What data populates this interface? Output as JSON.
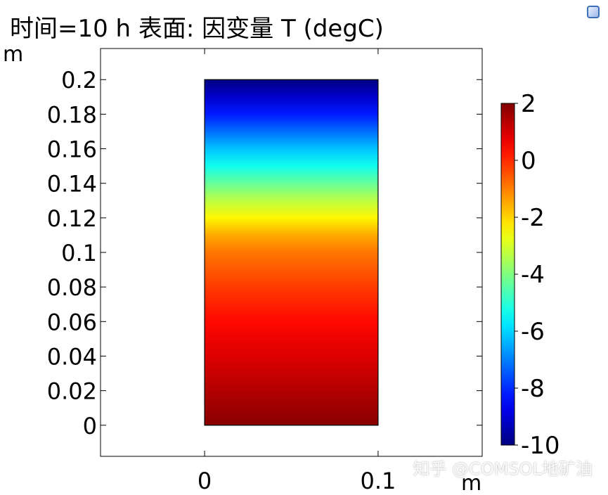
{
  "chart_data": {
    "type": "heatmap",
    "title": "时间=10 h  表面: 因变量 T (degC)",
    "xlabel": "m",
    "ylabel": "m",
    "xlim": [
      -0.06,
      0.16
    ],
    "ylim": [
      -0.018,
      0.218
    ],
    "x_ticks": [
      0,
      0.1
    ],
    "x_tick_labels": [
      "0",
      "0.1"
    ],
    "y_ticks": [
      0,
      0.02,
      0.04,
      0.06,
      0.08,
      0.1,
      0.12,
      0.14,
      0.16,
      0.18,
      0.2
    ],
    "y_tick_labels": [
      "0",
      "0.02",
      "0.04",
      "0.06",
      "0.08",
      "0.1",
      "0.12",
      "0.14",
      "0.16",
      "0.18",
      "0.2"
    ],
    "domain_x": [
      0,
      0.1
    ],
    "domain_y": [
      0,
      0.2
    ],
    "grid": false,
    "colorbar": {
      "label_unit": "degC",
      "range": [
        -10,
        2
      ],
      "ticks": [
        2,
        0,
        -2,
        -4,
        -6,
        -8,
        -10
      ],
      "tick_labels": [
        "2",
        "0",
        "-2",
        "-4",
        "-6",
        "-8",
        "-10"
      ],
      "colormap": "jet"
    },
    "temperature_profile": {
      "y": [
        0,
        0.02,
        0.04,
        0.06,
        0.08,
        0.1,
        0.11,
        0.12,
        0.13,
        0.14,
        0.15,
        0.16,
        0.17,
        0.18,
        0.19,
        0.2
      ],
      "T": [
        1.9,
        1.4,
        0.9,
        0.4,
        -0.2,
        -0.9,
        -1.5,
        -2.4,
        -3.3,
        -4.3,
        -5.3,
        -6.2,
        -7.2,
        -8.2,
        -9.1,
        -10
      ]
    }
  },
  "watermark": "知乎 @COMSOL地矿油",
  "icons": {
    "top_right": "app-icon"
  }
}
